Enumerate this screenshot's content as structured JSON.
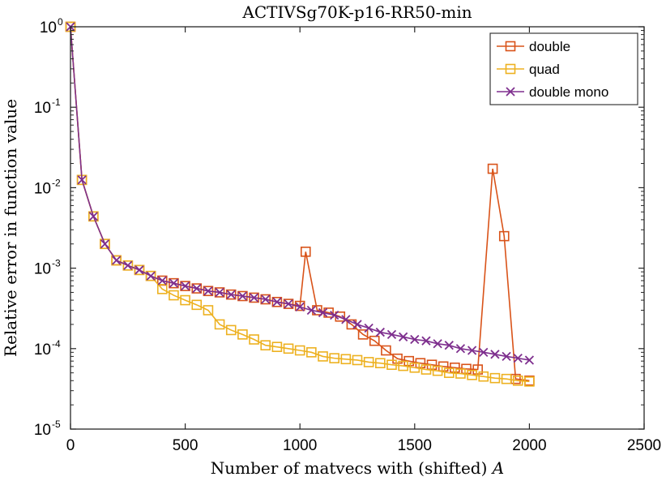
{
  "chart_data": {
    "type": "line",
    "title": "ACTIVSg70K-p16-RR50-min",
    "xlabel": "Number of matvecs with (shifted) ",
    "xlabel_math": "A",
    "ylabel": "Relative error in function value",
    "xlim": [
      0,
      2500
    ],
    "ylim_log10": [
      -5,
      0
    ],
    "yscale": "log",
    "grid": false,
    "legend_position": "top-right",
    "x_ticks": [
      "0",
      "500",
      "1000",
      "1500",
      "2000",
      "2500"
    ],
    "y_ticks": [
      {
        "base": "10",
        "exp": "0"
      },
      {
        "base": "10",
        "exp": "-1"
      },
      {
        "base": "10",
        "exp": "-2"
      },
      {
        "base": "10",
        "exp": "-3"
      },
      {
        "base": "10",
        "exp": "-4"
      },
      {
        "base": "10",
        "exp": "-5"
      }
    ],
    "series": [
      {
        "name": "double",
        "color": "#D95319",
        "marker": "square",
        "x": [
          0,
          50,
          100,
          150,
          200,
          250,
          300,
          350,
          400,
          450,
          500,
          550,
          600,
          650,
          700,
          750,
          800,
          850,
          900,
          950,
          1000,
          1025,
          1075,
          1125,
          1175,
          1225,
          1275,
          1325,
          1375,
          1425,
          1475,
          1525,
          1575,
          1625,
          1675,
          1725,
          1775,
          1840,
          1890,
          1940,
          2000
        ],
        "y": [
          1.0,
          0.0125,
          0.0044,
          0.002,
          0.00125,
          0.00108,
          0.00095,
          0.0008,
          0.0007,
          0.00065,
          0.0006,
          0.00056,
          0.00052,
          0.0005,
          0.00047,
          0.00045,
          0.00043,
          0.00041,
          0.00038,
          0.00036,
          0.00034,
          0.0016,
          0.0003,
          0.00028,
          0.00025,
          0.0002,
          0.00015,
          0.000125,
          9.5e-05,
          7.5e-05,
          7e-05,
          6.6e-05,
          6.3e-05,
          6e-05,
          5.8e-05,
          5.6e-05,
          5.5e-05,
          0.0172,
          0.0025,
          4.2e-05,
          4e-05
        ]
      },
      {
        "name": "quad",
        "color": "#EDB120",
        "marker": "square",
        "x": [
          0,
          50,
          100,
          150,
          200,
          250,
          300,
          350,
          400,
          450,
          500,
          550,
          600,
          650,
          700,
          750,
          800,
          850,
          900,
          950,
          1000,
          1050,
          1100,
          1150,
          1200,
          1250,
          1300,
          1350,
          1400,
          1450,
          1500,
          1550,
          1600,
          1650,
          1700,
          1750,
          1800,
          1850,
          1900,
          1950,
          2000
        ],
        "y": [
          1.0,
          0.0125,
          0.0044,
          0.002,
          0.00125,
          0.00108,
          0.00095,
          0.0008,
          0.00055,
          0.00046,
          0.0004,
          0.00035,
          0.0003,
          0.0002,
          0.00017,
          0.00015,
          0.00013,
          0.00011,
          0.000105,
          0.0001,
          9.5e-05,
          9e-05,
          8e-05,
          7.6e-05,
          7.4e-05,
          7.2e-05,
          6.8e-05,
          6.6e-05,
          6.3e-05,
          6.1e-05,
          5.8e-05,
          5.5e-05,
          5.3e-05,
          5e-05,
          4.9e-05,
          4.7e-05,
          4.5e-05,
          4.3e-05,
          4.2e-05,
          4e-05,
          3.9e-05
        ]
      },
      {
        "name": "double mono",
        "color": "#7E2F8E",
        "marker": "x",
        "x": [
          0,
          50,
          100,
          150,
          200,
          250,
          300,
          350,
          400,
          450,
          500,
          550,
          600,
          650,
          700,
          750,
          800,
          850,
          900,
          950,
          1000,
          1050,
          1100,
          1150,
          1200,
          1250,
          1300,
          1350,
          1400,
          1450,
          1500,
          1550,
          1600,
          1650,
          1700,
          1750,
          1800,
          1850,
          1900,
          1950,
          2000
        ],
        "y": [
          1.0,
          0.0125,
          0.0044,
          0.002,
          0.00125,
          0.00108,
          0.00095,
          0.0008,
          0.0007,
          0.00065,
          0.0006,
          0.00056,
          0.00052,
          0.0005,
          0.00047,
          0.00045,
          0.00043,
          0.00041,
          0.00038,
          0.00036,
          0.00033,
          0.0003,
          0.00028,
          0.00026,
          0.00023,
          0.0002,
          0.00018,
          0.00016,
          0.00015,
          0.00014,
          0.00013,
          0.000125,
          0.000115,
          0.00011,
          0.0001,
          9.5e-05,
          9e-05,
          8.5e-05,
          8e-05,
          7.6e-05,
          7.2e-05
        ]
      }
    ]
  }
}
